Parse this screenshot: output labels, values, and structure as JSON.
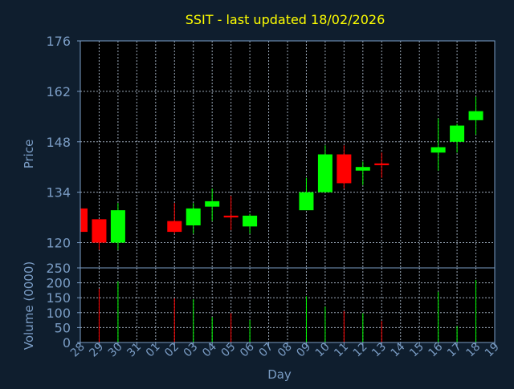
{
  "chart_data": {
    "type": "candlestick",
    "title": "SSIT - last updated 18/02/2026",
    "xlabel": "Day",
    "x_tick_labels": [
      "28",
      "29",
      "30",
      "31",
      "01",
      "02",
      "03",
      "04",
      "05",
      "06",
      "07",
      "08",
      "09",
      "10",
      "11",
      "12",
      "13",
      "14",
      "15",
      "16",
      "17",
      "18",
      "19"
    ],
    "price_panel": {
      "ylabel": "Price",
      "ylim": [
        113,
        176
      ],
      "y_ticks": [
        120,
        134,
        148,
        162,
        176
      ],
      "grid": true
    },
    "volume_panel": {
      "ylabel": "Volume (0000)",
      "ylim": [
        0,
        250
      ],
      "y_ticks": [
        0,
        50,
        100,
        150,
        200,
        250
      ],
      "grid": true
    },
    "candles": [
      {
        "day": "28",
        "open": 129.5,
        "high": 129.5,
        "low": 123.0,
        "close": 123.0,
        "volume": 0
      },
      {
        "day": "29",
        "open": 126.5,
        "high": 126.5,
        "low": 118.0,
        "close": 120.0,
        "volume": 180
      },
      {
        "day": "30",
        "open": 120.0,
        "high": 131.0,
        "low": 118.0,
        "close": 129.0,
        "volume": 205
      },
      {
        "day": "02",
        "open": 126.0,
        "high": 131.0,
        "low": 122.5,
        "close": 123.0,
        "volume": 148
      },
      {
        "day": "03",
        "open": 124.8,
        "high": 131.0,
        "low": 122.5,
        "close": 129.5,
        "volume": 145
      },
      {
        "day": "04",
        "open": 130.0,
        "high": 135.0,
        "low": 126.0,
        "close": 131.5,
        "volume": 85
      },
      {
        "day": "05",
        "open": 127.5,
        "high": 133.0,
        "low": 123.5,
        "close": 127.0,
        "volume": 98
      },
      {
        "day": "06",
        "open": 124.5,
        "high": 128.0,
        "low": 122.5,
        "close": 127.5,
        "volume": 75
      },
      {
        "day": "09",
        "open": 129.0,
        "high": 138.0,
        "low": 129.0,
        "close": 134.0,
        "volume": 155
      },
      {
        "day": "10",
        "open": 134.0,
        "high": 147.0,
        "low": 134.0,
        "close": 144.5,
        "volume": 120
      },
      {
        "day": "11",
        "open": 144.5,
        "high": 147.0,
        "low": 135.0,
        "close": 136.5,
        "volume": 105
      },
      {
        "day": "12",
        "open": 140.0,
        "high": 142.5,
        "low": 136.0,
        "close": 141.0,
        "volume": 98
      },
      {
        "day": "13",
        "open": 142.0,
        "high": 145.0,
        "low": 138.0,
        "close": 141.5,
        "volume": 72
      },
      {
        "day": "16",
        "open": 145.0,
        "high": 154.5,
        "low": 140.0,
        "close": 146.5,
        "volume": 170
      },
      {
        "day": "17",
        "open": 148.0,
        "high": 153.0,
        "low": 145.0,
        "close": 152.5,
        "volume": 55
      },
      {
        "day": "18",
        "open": 154.0,
        "high": 160.5,
        "low": 150.0,
        "close": 156.5,
        "volume": 210
      }
    ]
  },
  "colors": {
    "background": "#0f1e2e",
    "plot_background": "#000000",
    "frame": "#7a9cc4",
    "title": "#ffff00",
    "axis_text": "#7a9cc4",
    "grid": "#9aa8b8",
    "up": "#00ff00",
    "down": "#ff0000"
  }
}
